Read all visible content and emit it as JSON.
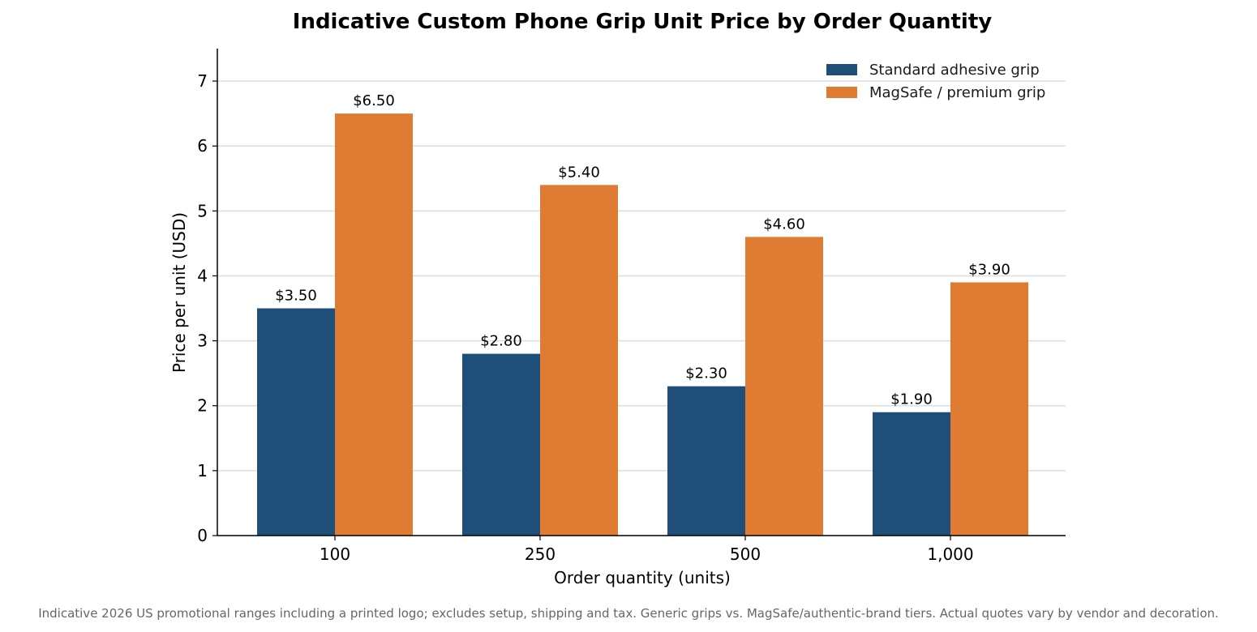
{
  "chart_data": {
    "type": "bar",
    "title": "Indicative Custom Phone Grip Unit Price by Order Quantity",
    "xlabel": "Order quantity (units)",
    "ylabel": "Price per unit (USD)",
    "categories": [
      "100",
      "250",
      "500",
      "1,000"
    ],
    "series": [
      {
        "name": "Standard adhesive grip",
        "color": "#1f4e79",
        "values": [
          3.5,
          2.8,
          2.3,
          1.9
        ],
        "labels": [
          "$3.50",
          "$2.80",
          "$2.30",
          "$1.90"
        ]
      },
      {
        "name": "MagSafe / premium grip",
        "color": "#e07b33",
        "values": [
          6.5,
          5.4,
          4.6,
          3.9
        ],
        "labels": [
          "$6.50",
          "$5.40",
          "$4.60",
          "$3.90"
        ]
      }
    ],
    "ylim": [
      0,
      7.5
    ],
    "yticks": [
      0,
      1,
      2,
      3,
      4,
      5,
      6,
      7
    ],
    "grid": "horizontal",
    "legend_position": "top-right"
  },
  "footnote": "Indicative 2026 US promotional ranges including a printed logo; excludes setup, shipping and tax. Generic grips vs. MagSafe/authentic-brand tiers. Actual quotes vary by vendor and decoration."
}
